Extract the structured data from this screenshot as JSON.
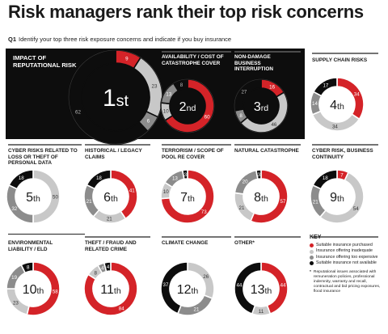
{
  "header": {
    "title": "Risk managers rank their top risk concerns",
    "question_number": "Q1",
    "question_text": "Identify your top three risk exposure concerns and indicate if you buy insurance"
  },
  "colors": {
    "suitable": "#d42328",
    "inadequate": "#c8c8c8",
    "expensive": "#8c8c8c",
    "unavailable": "#0d0d0d",
    "panel": "#0d0d0d"
  },
  "key": {
    "title": "KEY",
    "items": [
      {
        "label": "Suitable insurance purchased",
        "color": "#d42328"
      },
      {
        "label": "Insurance offering inadequate",
        "color": "#c8c8c8"
      },
      {
        "label": "Insurance offering too expensive",
        "color": "#8c8c8c"
      },
      {
        "label": "Suitable insurance not available",
        "color": "#0d0d0d"
      }
    ],
    "footnote_mark": "*",
    "footnote": "Reputational issues associated with remuneration policies, professional indemnity, warranty and recall, contractual and bid pricing exposures, flood insurance"
  },
  "chart_data": {
    "type": "donut",
    "segment_order": [
      "Suitable insurance purchased",
      "Insurance offering inadequate",
      "Insurance offering too expensive",
      "Suitable insurance not available"
    ],
    "charts": [
      {
        "label": "IMPACT OF REPUTATIONAL RISK",
        "rank": "1st",
        "values": [
          9,
          23,
          6,
          62
        ]
      },
      {
        "label": "AVAILABILITY / COST OF CATASTROPHE COVER",
        "rank": "2nd",
        "values": [
          60,
          10,
          13,
          8
        ]
      },
      {
        "label": "NON-DAMAGE BUSINESS INTERRUPTION",
        "rank": "3rd",
        "values": [
          16,
          46,
          8,
          27
        ]
      },
      {
        "label": "SUPPLY CHAIN RISKS",
        "rank": "4th",
        "values": [
          34,
          34,
          14,
          17
        ]
      },
      {
        "label": "CYBER RISKS RELATED TO LOSS OR THEFT OF PERSONAL DATA",
        "rank": "5th",
        "values": [
          null,
          50,
          32,
          18
        ]
      },
      {
        "label": "HISTORICAL / LEGACY CLAIMS",
        "rank": "6th",
        "values": [
          41,
          21,
          21,
          18
        ]
      },
      {
        "label": "TERRORISM / SCOPE OF POOL RE COVER",
        "rank": "7th",
        "values": [
          73,
          10,
          13,
          3
        ]
      },
      {
        "label": "NATURAL CATASTROPHE",
        "rank": "8th",
        "values": [
          57,
          21,
          20,
          3
        ]
      },
      {
        "label": "CYBER RISK, BUSINESS CONTINUITY",
        "rank": "9th",
        "values": [
          7,
          54,
          21,
          18
        ]
      },
      {
        "label": "ENVIRONMENTAL LIABILITY / ELD",
        "rank": "10th",
        "values": [
          58,
          23,
          19,
          8
        ]
      },
      {
        "label": "THEFT / FRAUD AND RELATED CRIME",
        "rank": "11th",
        "values": [
          84,
          8,
          4,
          4
        ]
      },
      {
        "label": "CLIMATE CHANGE",
        "rank": "12th",
        "values": [
          null,
          26,
          21,
          37
        ]
      },
      {
        "label": "OTHER*",
        "rank": "13th",
        "values": [
          44,
          11,
          null,
          44
        ]
      }
    ]
  }
}
